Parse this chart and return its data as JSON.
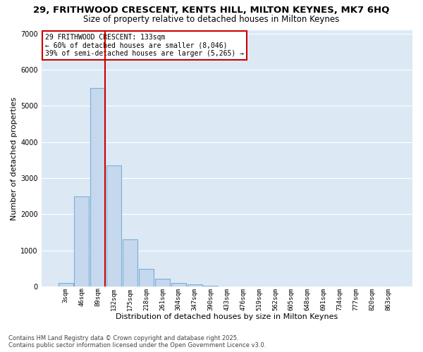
{
  "title1": "29, FRITHWOOD CRESCENT, KENTS HILL, MILTON KEYNES, MK7 6HQ",
  "title2": "Size of property relative to detached houses in Milton Keynes",
  "xlabel": "Distribution of detached houses by size in Milton Keynes",
  "ylabel": "Number of detached properties",
  "bin_labels": [
    "3sqm",
    "46sqm",
    "89sqm",
    "132sqm",
    "175sqm",
    "218sqm",
    "261sqm",
    "304sqm",
    "347sqm",
    "390sqm",
    "433sqm",
    "476sqm",
    "519sqm",
    "562sqm",
    "605sqm",
    "648sqm",
    "691sqm",
    "734sqm",
    "777sqm",
    "820sqm",
    "863sqm"
  ],
  "bar_values": [
    100,
    2500,
    5500,
    3350,
    1300,
    500,
    220,
    100,
    55,
    30,
    0,
    0,
    0,
    0,
    0,
    0,
    0,
    0,
    0,
    0,
    0
  ],
  "bar_color": "#c5d8ee",
  "bar_edgecolor": "#7aafd4",
  "bar_linewidth": 0.8,
  "vline_color": "#cc0000",
  "vline_linewidth": 1.5,
  "annotation_text": "29 FRITHWOOD CRESCENT: 133sqm\n← 60% of detached houses are smaller (8,046)\n39% of semi-detached houses are larger (5,265) →",
  "annotation_box_edgecolor": "#cc0000",
  "annotation_box_facecolor": "white",
  "ylim": [
    0,
    7100
  ],
  "yticks": [
    0,
    1000,
    2000,
    3000,
    4000,
    5000,
    6000,
    7000
  ],
  "background_color": "#dce9f5",
  "grid_color": "white",
  "footer_line1": "Contains HM Land Registry data © Crown copyright and database right 2025.",
  "footer_line2": "Contains public sector information licensed under the Open Government Licence v3.0.",
  "title1_fontsize": 9.5,
  "title2_fontsize": 8.5,
  "tick_fontsize": 6.5,
  "xlabel_fontsize": 8,
  "ylabel_fontsize": 8,
  "footer_fontsize": 6,
  "annotation_fontsize": 7
}
